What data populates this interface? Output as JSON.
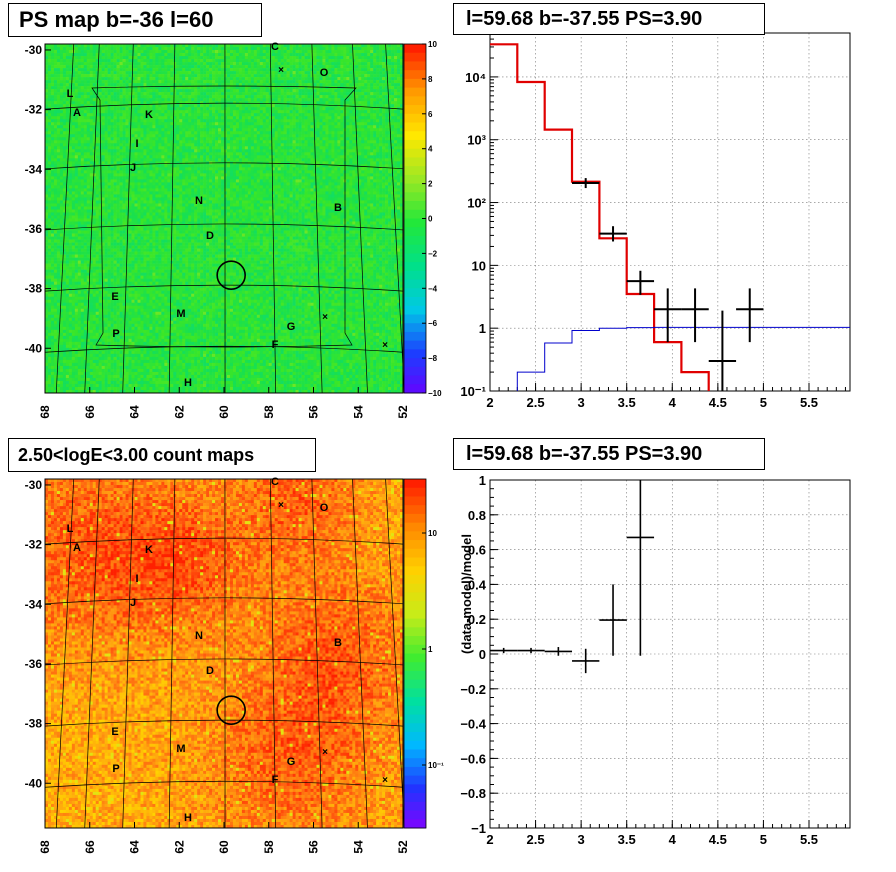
{
  "panels": {
    "ps_map_title": "PS map b=-36 l=60",
    "count_map_title": "2.50<logE<3.00 count maps",
    "spectrum_title": "l=59.68 b=-37.55 PS=3.90",
    "residual_title": "l=59.68 b=-37.55 PS=3.90"
  },
  "maps": {
    "x_ticks": [
      "68",
      "66",
      "64",
      "62",
      "60",
      "58",
      "56",
      "54",
      "52"
    ],
    "y_ticks": [
      "-30",
      "-32",
      "-34",
      "-36",
      "-38",
      "-40"
    ],
    "ps_colorbar_ticks": [
      "10",
      "8",
      "6",
      "4",
      "2",
      "0",
      "−2",
      "−4",
      "−6",
      "−8",
      "−10"
    ],
    "count_colorbar_ticks": [
      "10",
      "1",
      "10⁻¹"
    ],
    "source_labels": [
      "C",
      "O",
      "L",
      "A",
      "K",
      "I",
      "J",
      "N",
      "B",
      "D",
      "E",
      "M",
      "G",
      "P",
      "F",
      "H"
    ],
    "marker_glyph": "×"
  },
  "chart_data": [
    {
      "type": "heatmap",
      "title": "PS map b=-36 l=60",
      "x_ticks": [
        68,
        66,
        64,
        62,
        60,
        58,
        56,
        54,
        52
      ],
      "y_ticks": [
        -30,
        -32,
        -34,
        -36,
        -38,
        -40
      ],
      "xlim": [
        68,
        52
      ],
      "ylim": [
        -41.5,
        -29.8
      ],
      "zlim": [
        -10,
        10
      ],
      "colorscale": [
        "#6a00ff",
        "#1d3dff",
        "#00c8e6",
        "#00e08a",
        "#22e83a",
        "#9be824",
        "#ffe800",
        "#ff9a00",
        "#ff2000"
      ],
      "markers": {
        "circle": {
          "l": 59.68,
          "b": -37.55
        }
      }
    },
    {
      "type": "heatmap",
      "title": "2.50<logE<3.00 count maps",
      "x_ticks": [
        68,
        66,
        64,
        62,
        60,
        58,
        56,
        54,
        52
      ],
      "y_ticks": [
        -30,
        -32,
        -34,
        -36,
        -38,
        -40
      ],
      "xlim": [
        68,
        52
      ],
      "ylim": [
        -41.5,
        -29.8
      ],
      "zscale": "log",
      "z_ticks": [
        10,
        1,
        0.1
      ]
    },
    {
      "type": "line",
      "title": "l=59.68 b=-37.55 PS=3.90",
      "yscale": "log",
      "xlim": [
        2,
        5.95
      ],
      "ylim": [
        0.1,
        50000
      ],
      "x_ticks": [
        "2",
        "2.5",
        "3",
        "3.5",
        "4",
        "4.5",
        "5",
        "5.5"
      ],
      "y_ticks": [
        "10⁻¹",
        "1",
        "10",
        "10²",
        "10³",
        "10⁴"
      ],
      "grid": true,
      "series": [
        {
          "style": "hist",
          "color": "#e00000",
          "edges": [
            2.0,
            2.3,
            2.6,
            2.9,
            3.2,
            3.5,
            3.8,
            4.1,
            4.4,
            4.7,
            5.0,
            5.95
          ],
          "values": [
            33000,
            8300,
            1450,
            215,
            27,
            3.5,
            0.6,
            0.2,
            0.08,
            0.08,
            0.08
          ]
        },
        {
          "style": "hist",
          "color": "#0000cc",
          "edges": [
            2.0,
            2.3,
            2.6,
            2.9,
            3.2,
            3.5,
            3.8,
            4.1,
            4.4,
            4.7,
            5.0,
            5.95
          ],
          "values": [
            0.07,
            0.2,
            0.58,
            0.92,
            1.0,
            1.02,
            1.03,
            1.03,
            1.03,
            1.03,
            1.03
          ]
        },
        {
          "style": "points",
          "color": "#000000",
          "x": [
            3.05,
            3.35,
            3.65,
            3.95,
            4.25,
            4.55,
            4.85
          ],
          "xerr": [
            0.15,
            0.15,
            0.15,
            0.15,
            0.15,
            0.15,
            0.15
          ],
          "y": [
            205,
            32,
            5.6,
            2,
            2,
            0.3,
            2
          ],
          "ylo": [
            170,
            24,
            3.4,
            0.6,
            0.6,
            0.1,
            0.6
          ],
          "yhi": [
            245,
            42,
            8.2,
            4.3,
            4.3,
            1.9,
            4.3
          ]
        }
      ]
    },
    {
      "type": "scatter",
      "title": "l=59.68 b=-37.55 PS=3.90",
      "ylabel": "(data-model)/model",
      "xlim": [
        2,
        5.95
      ],
      "ylim": [
        -1,
        1
      ],
      "x_ticks": [
        "2",
        "2.5",
        "3",
        "3.5",
        "4",
        "4.5",
        "5",
        "5.5"
      ],
      "y_ticks": [
        "−1",
        "−0.8",
        "−0.6",
        "−0.4",
        "−0.2",
        "0",
        "0.2",
        "0.4",
        "0.6",
        "0.8",
        "1"
      ],
      "grid": true,
      "series": [
        {
          "color": "#000000",
          "x": [
            2.15,
            2.45,
            2.75,
            3.05,
            3.35,
            3.65
          ],
          "xerr": [
            0.15,
            0.15,
            0.15,
            0.15,
            0.15,
            0.15
          ],
          "y": [
            0.02,
            0.02,
            0.015,
            -0.04,
            0.195,
            0.67
          ],
          "ylo": [
            0.005,
            0.005,
            -0.01,
            -0.11,
            -0.01,
            -0.01
          ],
          "yhi": [
            0.035,
            0.035,
            0.04,
            0.03,
            0.4,
            1.0
          ]
        }
      ]
    }
  ]
}
